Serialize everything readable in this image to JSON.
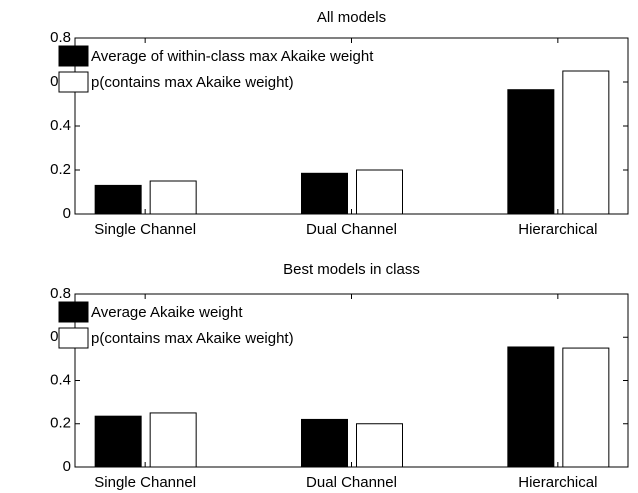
{
  "chart_data": [
    {
      "type": "bar",
      "title": "All models",
      "categories": [
        "Single Channel",
        "Dual Channel",
        "Hierarchical"
      ],
      "series": [
        {
          "name": "Average of within-class max Akaike weight",
          "color": "#000000",
          "values": [
            0.13,
            0.185,
            0.565
          ]
        },
        {
          "name": "p(contains max Akaike weight)",
          "color": "#ffffff",
          "values": [
            0.15,
            0.2,
            0.65
          ]
        }
      ],
      "ylim": [
        0,
        0.8
      ],
      "yticks": [
        0,
        0.2,
        0.4,
        0.6,
        0.8
      ],
      "legend": "northwest"
    },
    {
      "type": "bar",
      "title": "Best models in class",
      "categories": [
        "Single Channel",
        "Dual Channel",
        "Hierarchical"
      ],
      "series": [
        {
          "name": "Average Akaike weight",
          "color": "#000000",
          "values": [
            0.235,
            0.22,
            0.555
          ]
        },
        {
          "name": "p(contains max Akaike weight)",
          "color": "#ffffff",
          "values": [
            0.25,
            0.2,
            0.55
          ]
        }
      ],
      "ylim": [
        0,
        0.8
      ],
      "yticks": [
        0,
        0.2,
        0.4,
        0.6,
        0.8
      ],
      "legend": "northwest"
    }
  ]
}
